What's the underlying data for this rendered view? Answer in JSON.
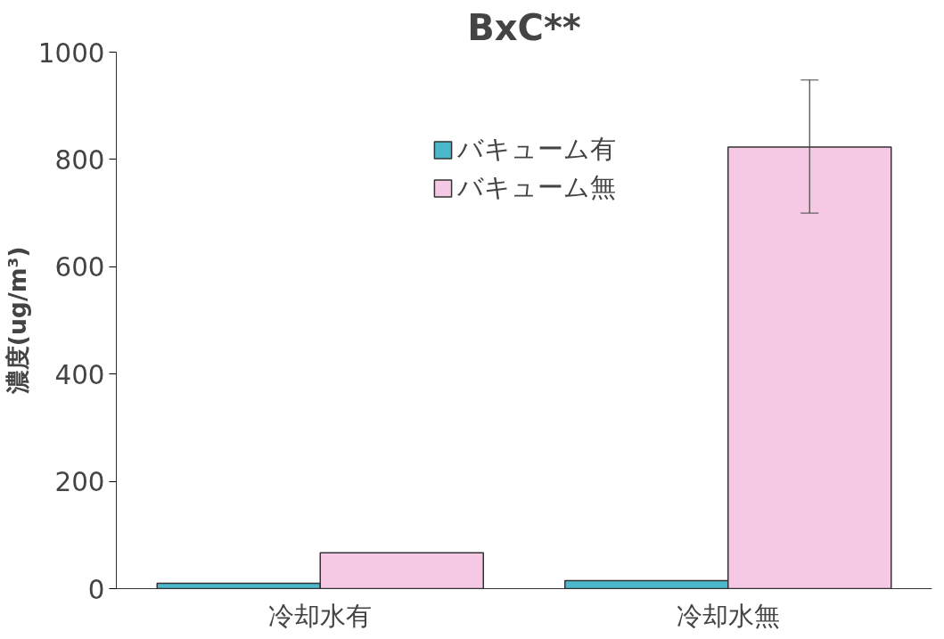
{
  "chart_data": {
    "type": "bar",
    "title": "BxC**",
    "ylabel": "濃度(ug/m³)",
    "categories": [
      "冷却水有",
      "冷却水無"
    ],
    "series": [
      {
        "name": "バキューム有",
        "color": "#4bb8cc",
        "values": [
          10,
          15
        ]
      },
      {
        "name": "バキューム無",
        "color": "#f5c8e4",
        "values": [
          67,
          823
        ],
        "errors": [
          null,
          [
            700,
            948
          ]
        ]
      }
    ],
    "ylim": [
      0,
      1000
    ],
    "yticks": [
      0,
      200,
      400,
      600,
      800,
      1000
    ],
    "grid": false,
    "legend": "top"
  }
}
